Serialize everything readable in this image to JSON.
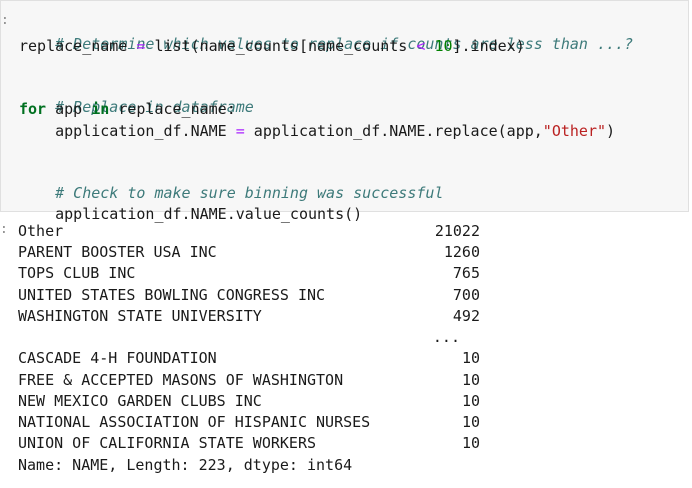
{
  "code": {
    "comment1": "# Determine which values to replace if counts are less than ...?",
    "line2_a": "replace_name ",
    "line2_op": "=",
    "line2_b": " list(name_counts[name_counts ",
    "line2_lt": "<",
    "line2_c": " ",
    "line2_num": "10",
    "line2_d": "].index)",
    "comment2": "# Replace in dataframe",
    "for_kw": "for",
    "for_var": " app ",
    "in_kw": "in",
    "for_rest": " replace_name:",
    "line5_a": "    application_df.NAME ",
    "line5_op": "=",
    "line5_b": " application_df.NAME.replace(app,",
    "line5_str": "\"Other\"",
    "line5_c": ")",
    "comment3": "# Check to make sure binning was successful",
    "line8": "application_df.NAME.value_counts()"
  },
  "output": {
    "rows": [
      {
        "name": "Other",
        "value": "21022"
      },
      {
        "name": "PARENT BOOSTER USA INC",
        "value": "1260"
      },
      {
        "name": "TOPS CLUB INC",
        "value": "765"
      },
      {
        "name": "UNITED STATES BOWLING CONGRESS INC",
        "value": "700"
      },
      {
        "name": "WASHINGTON STATE UNIVERSITY",
        "value": "492"
      },
      {
        "name": "",
        "value": "..."
      },
      {
        "name": "CASCADE 4-H FOUNDATION",
        "value": "10"
      },
      {
        "name": "FREE & ACCEPTED MASONS OF WASHINGTON",
        "value": "10"
      },
      {
        "name": "NEW MEXICO GARDEN CLUBS INC",
        "value": "10"
      },
      {
        "name": "NATIONAL ASSOCIATION OF HISPANIC NURSES",
        "value": "10"
      },
      {
        "name": "UNION OF CALIFORNIA STATE WORKERS",
        "value": "10"
      }
    ],
    "footer": "Name: NAME, Length: 223, dtype: int64"
  }
}
